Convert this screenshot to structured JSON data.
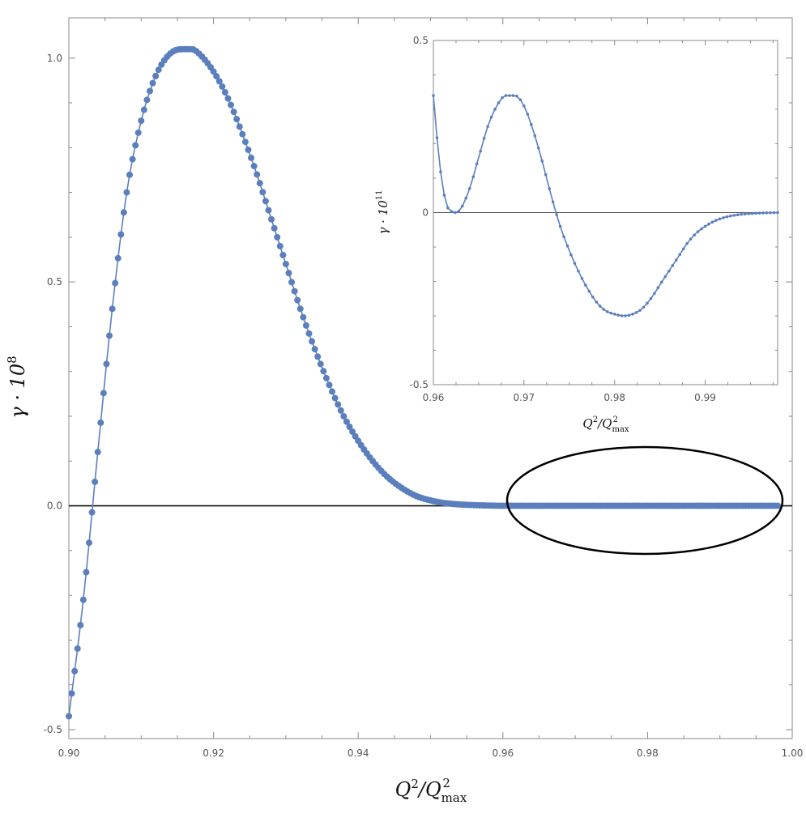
{
  "chart_data": [
    {
      "type": "scatter",
      "panel": "main",
      "xlabel": {
        "base": "Q",
        "sup": "2",
        "sep": "/Q",
        "sub": "max",
        "sup2": "2"
      },
      "ylabel": {
        "base": "γ · 10",
        "sup": "8"
      },
      "xlim": [
        0.9,
        1.0
      ],
      "ylim": [
        -0.52,
        1.09
      ],
      "xticks": [
        0.9,
        0.92,
        0.94,
        0.96,
        0.98,
        1.0
      ],
      "xtick_labels": [
        "0.90",
        "0.92",
        "0.94",
        "0.96",
        "0.98",
        "1.00"
      ],
      "yticks": [
        -0.5,
        0.0,
        0.5,
        1.0
      ],
      "ytick_labels": [
        "-0.5",
        "0.0",
        "0.5",
        "1.0"
      ],
      "zero_line": true,
      "grid": false,
      "color": "#5b7fbd",
      "series": [
        {
          "x": [
            0.9,
            0.902,
            0.904,
            0.906,
            0.908,
            0.91,
            0.912,
            0.914,
            0.916,
            0.917,
            0.918,
            0.92,
            0.922,
            0.924,
            0.926,
            0.928,
            0.93,
            0.932,
            0.934,
            0.936,
            0.938,
            0.94,
            0.942,
            0.944,
            0.946,
            0.948,
            0.95,
            0.952,
            0.954,
            0.956,
            0.958,
            0.96,
            0.97,
            0.98,
            0.99,
            0.998
          ],
          "y": [
            -0.47,
            -0.21,
            0.12,
            0.44,
            0.7,
            0.86,
            0.96,
            1.01,
            1.02,
            1.02,
            1.01,
            0.97,
            0.91,
            0.83,
            0.74,
            0.64,
            0.54,
            0.44,
            0.35,
            0.27,
            0.2,
            0.145,
            0.1,
            0.065,
            0.04,
            0.022,
            0.012,
            0.006,
            0.003,
            0.0015,
            0.0006,
            0.0,
            0.0,
            0.0,
            0.0,
            0.0
          ]
        }
      ]
    },
    {
      "type": "scatter",
      "panel": "inset",
      "xlabel": {
        "base": "Q",
        "sup": "2",
        "sep": "/Q",
        "sub": "max",
        "sup2": "2"
      },
      "ylabel": {
        "base": "γ · 10",
        "sup": "11"
      },
      "xlim": [
        0.96,
        0.998
      ],
      "ylim": [
        -0.5,
        0.5
      ],
      "xticks": [
        0.96,
        0.97,
        0.98,
        0.99
      ],
      "xtick_labels": [
        "0.96",
        "0.97",
        "0.98",
        "0.99"
      ],
      "yticks": [
        -0.5,
        0.0,
        0.5
      ],
      "ytick_labels": [
        "-0.5",
        "0",
        "0.5"
      ],
      "zero_line": true,
      "grid": false,
      "color": "#5b7fbd",
      "series": [
        {
          "x": [
            0.96,
            0.9605,
            0.961,
            0.9615,
            0.962,
            0.9625,
            0.963,
            0.964,
            0.965,
            0.966,
            0.967,
            0.968,
            0.969,
            0.97,
            0.971,
            0.972,
            0.973,
            0.974,
            0.975,
            0.976,
            0.977,
            0.978,
            0.979,
            0.98,
            0.981,
            0.982,
            0.983,
            0.984,
            0.985,
            0.986,
            0.987,
            0.988,
            0.989,
            0.99,
            0.991,
            0.992,
            0.993,
            0.994,
            0.995,
            0.996,
            0.997,
            0.998
          ],
          "y": [
            0.34,
            0.19,
            0.08,
            0.02,
            0.003,
            0.0,
            0.01,
            0.07,
            0.16,
            0.25,
            0.31,
            0.34,
            0.34,
            0.31,
            0.24,
            0.15,
            0.05,
            -0.04,
            -0.11,
            -0.17,
            -0.22,
            -0.26,
            -0.285,
            -0.295,
            -0.3,
            -0.295,
            -0.28,
            -0.25,
            -0.21,
            -0.17,
            -0.13,
            -0.09,
            -0.06,
            -0.04,
            -0.025,
            -0.015,
            -0.009,
            -0.005,
            -0.003,
            -0.0015,
            -0.0005,
            0.0
          ]
        }
      ]
    }
  ]
}
